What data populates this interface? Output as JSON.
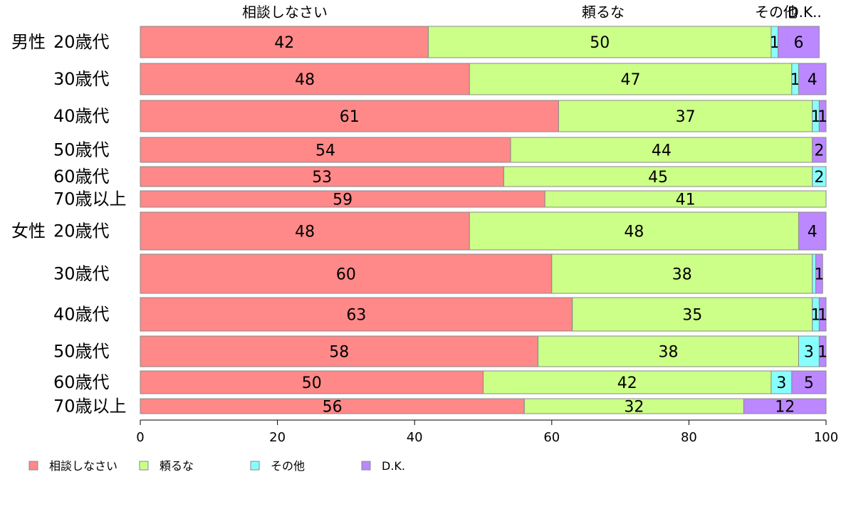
{
  "chart_data": {
    "type": "bar",
    "orientation": "horizontal",
    "stacked": true,
    "xlim": [
      0,
      100
    ],
    "xticks": [
      0,
      20,
      40,
      60,
      80,
      100
    ],
    "grid": false,
    "legend_position": "bottom",
    "series": [
      {
        "name": "相談しなさい",
        "color": "#ff8888"
      },
      {
        "name": "頼るな",
        "color": "#ccff88"
      },
      {
        "name": "その他",
        "color": "#88ffff"
      },
      {
        "name": "D.K.",
        "color": "#bb88ff"
      }
    ],
    "top_labels": [
      "相談しなさい",
      "頼るな",
      "その他",
      "D.K.."
    ],
    "rows": [
      {
        "group": "男性",
        "label": "20歳代",
        "values": [
          42,
          50,
          1,
          6
        ],
        "labels": [
          "42",
          "50",
          "1",
          "6"
        ]
      },
      {
        "group": "",
        "label": "30歳代",
        "values": [
          48,
          47,
          1,
          4
        ],
        "labels": [
          "48",
          "47",
          "1",
          "4"
        ]
      },
      {
        "group": "",
        "label": "40歳代",
        "values": [
          61,
          37,
          1,
          1
        ],
        "labels": [
          "61",
          "37",
          "1",
          "1"
        ]
      },
      {
        "group": "",
        "label": "50歳代",
        "values": [
          54,
          44,
          0,
          2
        ],
        "labels": [
          "54",
          "44",
          "",
          "2"
        ]
      },
      {
        "group": "",
        "label": "60歳代",
        "values": [
          53,
          45,
          2,
          0
        ],
        "labels": [
          "53",
          "45",
          "2",
          ""
        ]
      },
      {
        "group": "",
        "label": "70歳以上",
        "values": [
          59,
          41,
          0,
          0
        ],
        "labels": [
          "59",
          "41",
          "",
          ""
        ]
      },
      {
        "group": "女性",
        "label": "20歳代",
        "values": [
          48,
          48,
          0,
          4
        ],
        "labels": [
          "48",
          "48",
          "",
          "4"
        ]
      },
      {
        "group": "",
        "label": "30歳代",
        "values": [
          60,
          38,
          0.5,
          1
        ],
        "labels": [
          "60",
          "38",
          "",
          "1"
        ]
      },
      {
        "group": "",
        "label": "40歳代",
        "values": [
          63,
          35,
          1,
          1
        ],
        "labels": [
          "63",
          "35",
          "1",
          "1"
        ]
      },
      {
        "group": "",
        "label": "50歳代",
        "values": [
          58,
          38,
          3,
          1
        ],
        "labels": [
          "58",
          "38",
          "3",
          "1"
        ]
      },
      {
        "group": "",
        "label": "60歳代",
        "values": [
          50,
          42,
          3,
          5
        ],
        "labels": [
          "50",
          "42",
          "3",
          "5"
        ]
      },
      {
        "group": "",
        "label": "70歳以上",
        "values": [
          56,
          32,
          0,
          12
        ],
        "labels": [
          "56",
          "32",
          "",
          "12"
        ]
      }
    ]
  }
}
